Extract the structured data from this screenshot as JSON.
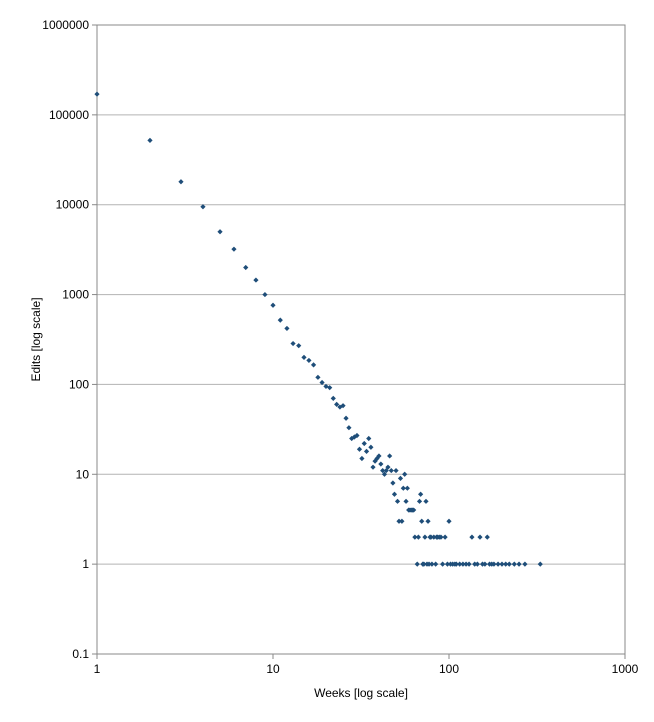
{
  "chart_data": {
    "type": "scatter",
    "title": "",
    "xlabel": "Weeks [log scale]",
    "ylabel": "Edits [log scale]",
    "x_scale": "log",
    "y_scale": "log",
    "xlim": [
      1,
      1000
    ],
    "ylim": [
      0.1,
      1000000
    ],
    "x_ticks": [
      "1",
      "10",
      "100",
      "1000"
    ],
    "y_ticks": [
      "0.1",
      "1",
      "10",
      "100",
      "1000",
      "10000",
      "100000",
      "1000000"
    ],
    "grid": "horizontal",
    "legend": "none",
    "marker_color": "#1f4e79",
    "series": [
      {
        "points": [
          [
            1,
            170000
          ],
          [
            2,
            52000
          ],
          [
            3,
            18000
          ],
          [
            4,
            9500
          ],
          [
            5,
            5000
          ],
          [
            6,
            3200
          ],
          [
            7,
            2000
          ],
          [
            8,
            1450
          ],
          [
            9,
            1000
          ],
          [
            10,
            760
          ],
          [
            11,
            520
          ],
          [
            12,
            420
          ],
          [
            13,
            285
          ],
          [
            14,
            270
          ],
          [
            15,
            200
          ],
          [
            16,
            185
          ],
          [
            17,
            165
          ],
          [
            18,
            120
          ],
          [
            19,
            105
          ],
          [
            20,
            95
          ],
          [
            21,
            92
          ],
          [
            22,
            70
          ],
          [
            23,
            60
          ],
          [
            24,
            56
          ],
          [
            25,
            58
          ],
          [
            26,
            42
          ],
          [
            27,
            33
          ],
          [
            28,
            25
          ],
          [
            29,
            26
          ],
          [
            30,
            27
          ],
          [
            31,
            19
          ],
          [
            32,
            15
          ],
          [
            33,
            22
          ],
          [
            34,
            18
          ],
          [
            35,
            25
          ],
          [
            36,
            20
          ],
          [
            37,
            12
          ],
          [
            38,
            14
          ],
          [
            39,
            15
          ],
          [
            40,
            16
          ],
          [
            41,
            13
          ],
          [
            42,
            11
          ],
          [
            43,
            10
          ],
          [
            44,
            11
          ],
          [
            45,
            12
          ],
          [
            46,
            16
          ],
          [
            47,
            11
          ],
          [
            48,
            8
          ],
          [
            49,
            6
          ],
          [
            50,
            11
          ],
          [
            51,
            5
          ],
          [
            52,
            3
          ],
          [
            53,
            9
          ],
          [
            54,
            3
          ],
          [
            55,
            7
          ],
          [
            56,
            10
          ],
          [
            57,
            5
          ],
          [
            58,
            7
          ],
          [
            59,
            4
          ],
          [
            60,
            4
          ],
          [
            61,
            4
          ],
          [
            62,
            4
          ],
          [
            63,
            4
          ],
          [
            64,
            2
          ],
          [
            66,
            1
          ],
          [
            67,
            2
          ],
          [
            68,
            5
          ],
          [
            69,
            6
          ],
          [
            70,
            3
          ],
          [
            71,
            1
          ],
          [
            72,
            1
          ],
          [
            73,
            2
          ],
          [
            74,
            5
          ],
          [
            75,
            1
          ],
          [
            76,
            3
          ],
          [
            77,
            1
          ],
          [
            78,
            2
          ],
          [
            79,
            2
          ],
          [
            80,
            1
          ],
          [
            82,
            2
          ],
          [
            84,
            1
          ],
          [
            85,
            2
          ],
          [
            86,
            2
          ],
          [
            88,
            2
          ],
          [
            90,
            2
          ],
          [
            92,
            1
          ],
          [
            95,
            2
          ],
          [
            98,
            1
          ],
          [
            100,
            3
          ],
          [
            102,
            1
          ],
          [
            105,
            1
          ],
          [
            108,
            1
          ],
          [
            110,
            1
          ],
          [
            115,
            1
          ],
          [
            120,
            1
          ],
          [
            125,
            1
          ],
          [
            130,
            1
          ],
          [
            135,
            2
          ],
          [
            140,
            1
          ],
          [
            145,
            1
          ],
          [
            150,
            2
          ],
          [
            155,
            1
          ],
          [
            160,
            1
          ],
          [
            165,
            2
          ],
          [
            170,
            1
          ],
          [
            175,
            1
          ],
          [
            180,
            1
          ],
          [
            190,
            1
          ],
          [
            200,
            1
          ],
          [
            210,
            1
          ],
          [
            220,
            1
          ],
          [
            235,
            1
          ],
          [
            250,
            1
          ],
          [
            270,
            1
          ],
          [
            330,
            1
          ]
        ]
      }
    ]
  }
}
